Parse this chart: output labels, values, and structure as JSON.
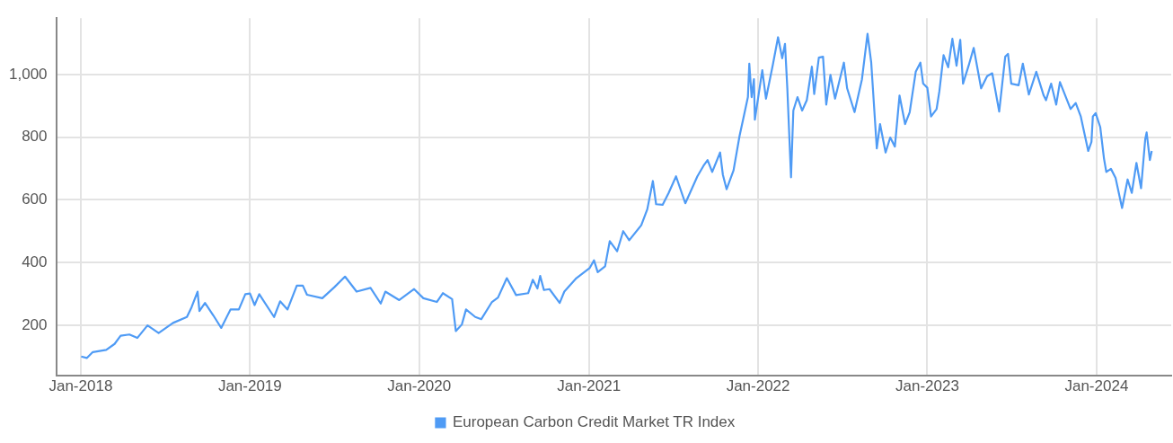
{
  "chart_data": {
    "type": "line",
    "x": [
      "2018-01-02",
      "2018-01-14",
      "2018-01-27",
      "2018-02-25",
      "2018-03-15",
      "2018-03-28",
      "2018-04-16",
      "2018-05-03",
      "2018-05-25",
      "2018-06-18",
      "2018-07-19",
      "2018-08-18",
      "2018-08-28",
      "2018-09-10",
      "2018-09-14",
      "2018-09-26",
      "2018-10-14",
      "2018-10-31",
      "2018-11-20",
      "2018-12-08",
      "2018-12-22",
      "2019-01-01",
      "2019-01-11",
      "2019-01-21",
      "2019-02-22",
      "2019-03-07",
      "2019-03-23",
      "2019-04-12",
      "2019-04-25",
      "2019-05-04",
      "2019-06-06",
      "2019-07-02",
      "2019-07-25",
      "2019-08-19",
      "2019-09-18",
      "2019-10-10",
      "2019-10-20",
      "2019-11-19",
      "2019-12-21",
      "2020-01-10",
      "2020-02-08",
      "2020-02-21",
      "2020-03-12",
      "2020-03-20",
      "2020-04-02",
      "2020-04-11",
      "2020-05-01",
      "2020-05-14",
      "2020-06-06",
      "2020-06-19",
      "2020-07-08",
      "2020-07-28",
      "2020-08-23",
      "2020-09-02",
      "2020-09-12",
      "2020-09-18",
      "2020-09-26",
      "2020-10-08",
      "2020-10-30",
      "2020-11-09",
      "2020-12-05",
      "2021-01-03",
      "2021-01-12",
      "2021-01-20",
      "2021-02-05",
      "2021-02-15",
      "2021-03-03",
      "2021-03-16",
      "2021-03-29",
      "2021-04-24",
      "2021-05-07",
      "2021-05-19",
      "2021-05-26",
      "2021-06-09",
      "2021-06-22",
      "2021-07-08",
      "2021-07-28",
      "2021-08-23",
      "2021-09-05",
      "2021-09-14",
      "2021-09-24",
      "2021-10-11",
      "2021-10-17",
      "2021-10-25",
      "2021-11-09",
      "2021-11-22",
      "2021-12-01",
      "2021-12-10",
      "2021-12-13",
      "2021-12-18",
      "2021-12-23",
      "2021-12-25",
      "2022-01-10",
      "2022-01-18",
      "2022-02-02",
      "2022-02-13",
      "2022-02-22",
      "2022-02-28",
      "2022-03-05",
      "2022-03-13",
      "2022-03-18",
      "2022-03-27",
      "2022-04-06",
      "2022-04-16",
      "2022-04-27",
      "2022-05-02",
      "2022-05-12",
      "2022-05-21",
      "2022-05-28",
      "2022-06-06",
      "2022-06-16",
      "2022-07-05",
      "2022-07-12",
      "2022-07-28",
      "2022-08-13",
      "2022-08-25",
      "2022-09-02",
      "2022-09-14",
      "2022-09-21",
      "2022-10-03",
      "2022-10-13",
      "2022-10-23",
      "2022-11-02",
      "2022-11-14",
      "2022-11-24",
      "2022-12-07",
      "2022-12-17",
      "2022-12-23",
      "2023-01-01",
      "2023-01-09",
      "2023-01-21",
      "2023-01-27",
      "2023-02-05",
      "2023-02-15",
      "2023-02-24",
      "2023-03-05",
      "2023-03-13",
      "2023-03-19",
      "2023-03-31",
      "2023-04-11",
      "2023-04-27",
      "2023-05-10",
      "2023-05-21",
      "2023-06-05",
      "2023-06-18",
      "2023-06-24",
      "2023-07-01",
      "2023-07-17",
      "2023-07-26",
      "2023-08-08",
      "2023-08-24",
      "2023-09-09",
      "2023-09-14",
      "2023-09-25",
      "2023-10-06",
      "2023-10-14",
      "2023-11-06",
      "2023-11-17",
      "2023-11-28",
      "2023-12-14",
      "2023-12-21",
      "2023-12-24",
      "2023-12-30",
      "2024-01-09",
      "2024-01-17",
      "2024-01-22",
      "2024-02-01",
      "2024-02-11",
      "2024-02-25",
      "2024-03-08",
      "2024-03-17",
      "2024-03-27",
      "2024-04-06",
      "2024-04-15",
      "2024-04-18",
      "2024-04-25",
      "2024-04-29"
    ],
    "series": [
      {
        "name": "European Carbon Credit Market TR Index",
        "color": "#4f9bf5",
        "values": [
          100,
          95,
          114,
          121,
          140,
          166,
          170,
          159,
          199,
          175,
          207,
          226,
          257,
          307,
          245,
          271,
          231,
          191,
          250,
          250,
          299,
          301,
          264,
          299,
          226,
          276,
          250,
          326,
          326,
          297,
          286,
          321,
          355,
          307,
          319,
          269,
          307,
          280,
          315,
          286,
          274,
          302,
          283,
          181,
          202,
          250,
          226,
          219,
          274,
          288,
          350,
          296,
          302,
          345,
          317,
          357,
          312,
          315,
          271,
          307,
          350,
          383,
          407,
          369,
          388,
          468,
          436,
          500,
          471,
          519,
          570,
          660,
          586,
          584,
          622,
          675,
          589,
          675,
          708,
          727,
          689,
          751,
          680,
          634,
          694,
          804,
          866,
          928,
          1035,
          928,
          985,
          856,
          1014,
          923,
          1033,
          1119,
          1052,
          1098,
          956,
          672,
          885,
          928,
          885,
          918,
          1025,
          938,
          1054,
          1057,
          904,
          999,
          923,
          1038,
          956,
          880,
          985,
          1130,
          1038,
          764,
          842,
          751,
          799,
          770,
          933,
          842,
          880,
          1009,
          1038,
          971,
          958,
          866,
          890,
          947,
          1062,
          1023,
          1114,
          1028,
          1111,
          971,
          1028,
          1085,
          956,
          995,
          1004,
          882,
          1057,
          1066,
          971,
          966,
          1035,
          936,
          1009,
          933,
          918,
          971,
          904,
          976,
          890,
          909,
          866,
          756,
          785,
          866,
          877,
          832,
          732,
          689,
          699,
          670,
          574,
          665,
          622,
          718,
          637,
          794,
          815,
          727,
          756
        ]
      }
    ],
    "xlim": [
      "2017-11-09",
      "2024-06-10"
    ],
    "xticks": [
      {
        "value": "2018-01-01",
        "label": "Jan-2018"
      },
      {
        "value": "2019-01-01",
        "label": "Jan-2019"
      },
      {
        "value": "2020-01-01",
        "label": "Jan-2020"
      },
      {
        "value": "2021-01-01",
        "label": "Jan-2021"
      },
      {
        "value": "2022-01-01",
        "label": "Jan-2022"
      },
      {
        "value": "2023-01-01",
        "label": "Jan-2023"
      },
      {
        "value": "2024-01-01",
        "label": "Jan-2024"
      }
    ],
    "ylim": [
      40,
      1180
    ],
    "yticks": [
      200,
      400,
      600,
      800,
      {
        "value": 1000,
        "label": "1,000"
      }
    ],
    "grid": true,
    "legend": "bottom",
    "marker": "none",
    "line_style": "solid"
  }
}
